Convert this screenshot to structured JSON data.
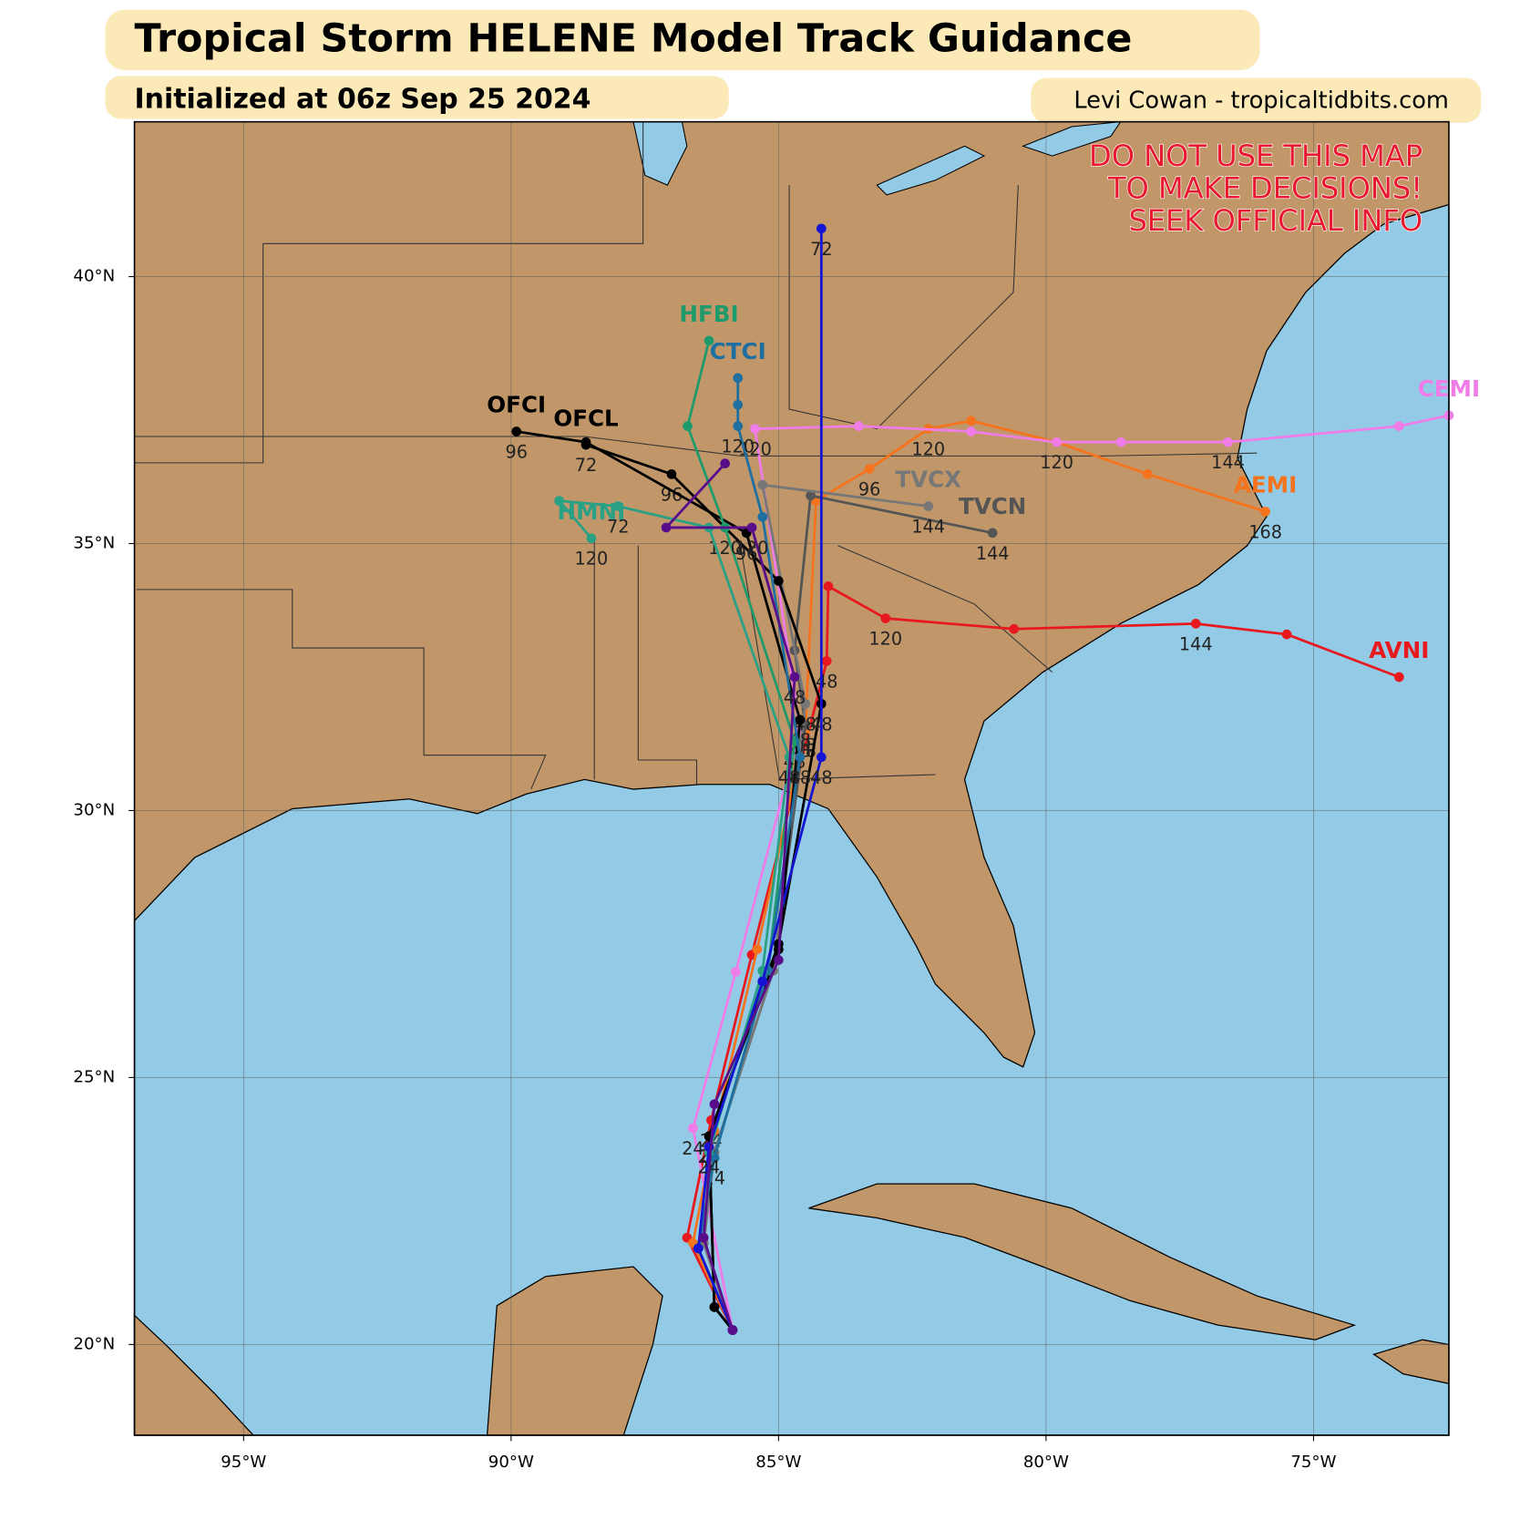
{
  "chart_data": {
    "type": "track",
    "title": "Tropical Storm HELENE Model Track Guidance",
    "subtitle": "Initialized at 06z Sep 25 2024",
    "credit": "Levi Cowan - tropicaltidbits.com",
    "annotations": [
      "DO NOT USE THIS MAP",
      "TO MAKE DECISIONS!",
      "SEEK OFFICIAL INFO"
    ],
    "xlim": [
      -97.04,
      -72.47
    ],
    "ylim": [
      18.3,
      42.9
    ],
    "grid": true,
    "xticks": [
      {
        "value": -95,
        "label": "95°W"
      },
      {
        "value": -90,
        "label": "90°W"
      },
      {
        "value": -85,
        "label": "85°W"
      },
      {
        "value": -80,
        "label": "80°W"
      },
      {
        "value": -75,
        "label": "75°W"
      }
    ],
    "yticks": [
      {
        "value": 20,
        "label": "20°N"
      },
      {
        "value": 25,
        "label": "25°N"
      },
      {
        "value": 30,
        "label": "30°N"
      },
      {
        "value": 35,
        "label": "35°N"
      },
      {
        "value": 40,
        "label": "40°N"
      }
    ],
    "series": [
      {
        "name": "AVNI",
        "color": "#e8191e",
        "x": [
          -85.86,
          -86.71,
          -86.26,
          -85.5,
          -84.1,
          -84.07,
          -83.0,
          -80.6,
          -77.2,
          -75.5,
          -73.4
        ],
        "values": [
          20.27,
          22.0,
          24.2,
          27.3,
          32.8,
          34.2,
          33.6,
          33.4,
          33.5,
          33.3,
          32.5
        ],
        "point_labels": [
          null,
          null,
          "24",
          null,
          "48",
          null,
          "120",
          null,
          "144",
          null,
          null
        ]
      },
      {
        "name": "AEMI",
        "color": "#f5731c",
        "x": [
          -85.86,
          -86.6,
          -86.2,
          -85.4,
          -84.5,
          -84.3,
          -83.3,
          -82.2,
          -81.4,
          -79.8,
          -78.1,
          -75.9
        ],
        "values": [
          20.27,
          21.9,
          24.0,
          27.4,
          31.5,
          35.8,
          36.4,
          37.15,
          37.3,
          36.9,
          36.3,
          35.6
        ],
        "point_labels": [
          null,
          null,
          null,
          null,
          "48",
          null,
          "96",
          "120",
          null,
          "120",
          null,
          "168"
        ]
      },
      {
        "name": "CEMI",
        "color": "#f07ce8",
        "x": [
          -85.86,
          -86.6,
          -85.8,
          -84.6,
          -85.44,
          -83.5,
          -81.4,
          -79.8,
          -78.6,
          -76.6,
          -73.4,
          -72.47
        ],
        "values": [
          20.27,
          24.05,
          26.98,
          31.5,
          37.15,
          37.2,
          37.1,
          36.9,
          36.9,
          36.9,
          37.2,
          37.4
        ],
        "point_labels": [
          null,
          "24",
          null,
          "48",
          "120",
          null,
          null,
          null,
          null,
          "144",
          null,
          null
        ]
      },
      {
        "name": "TVCN",
        "color": "#555555",
        "x": [
          -85.86,
          -86.4,
          -86.2,
          -85.1,
          -84.5,
          -84.7,
          -84.4,
          -81.0
        ],
        "values": [
          20.27,
          21.9,
          23.6,
          27.0,
          31.6,
          33.0,
          35.9,
          35.2
        ],
        "point_labels": [
          null,
          null,
          null,
          null,
          "48",
          null,
          null,
          "144"
        ]
      },
      {
        "name": "TVCX",
        "color": "#777777",
        "x": [
          -85.86,
          -86.4,
          -86.2,
          -85.1,
          -84.5,
          -85.3,
          -82.2
        ],
        "values": [
          20.27,
          21.9,
          23.6,
          27.0,
          32.0,
          36.1,
          35.7
        ],
        "point_labels": [
          null,
          null,
          null,
          null,
          "48",
          null,
          "144"
        ]
      },
      {
        "name": "OFCL",
        "color": "#000000",
        "x": [
          -85.86,
          -86.2,
          -86.3,
          -85.0,
          -84.2,
          -85.0,
          -87.0,
          -88.6
        ],
        "values": [
          20.27,
          20.7,
          23.9,
          27.5,
          32.0,
          34.3,
          36.3,
          36.85
        ],
        "point_labels": [
          null,
          null,
          "24",
          null,
          "48",
          null,
          "96",
          "72"
        ]
      },
      {
        "name": "OFCI",
        "color": "#000000",
        "x": [
          -85.86,
          -86.2,
          -86.3,
          -85.0,
          -84.6,
          -85.6,
          -88.6,
          -89.9
        ],
        "values": [
          20.27,
          20.7,
          23.9,
          27.4,
          31.7,
          35.2,
          36.9,
          37.1
        ],
        "point_labels": [
          null,
          null,
          "24",
          null,
          "48",
          "96",
          null,
          "96"
        ]
      },
      {
        "name": "HFBI",
        "color": "#1f9a6a",
        "x": [
          -85.86,
          -86.5,
          -86.2,
          -85.2,
          -84.7,
          -86.0,
          -86.7,
          -86.3
        ],
        "values": [
          20.27,
          21.8,
          23.5,
          27.0,
          31.3,
          35.3,
          37.2,
          38.8
        ],
        "point_labels": [
          null,
          null,
          "24",
          null,
          "48",
          "120",
          null,
          null
        ]
      },
      {
        "name": "CTCI",
        "color": "#1f6fa0",
        "x": [
          -85.86,
          -86.5,
          -86.2,
          -85.2,
          -84.6,
          -85.3,
          -85.76,
          -85.76,
          -85.76
        ],
        "values": [
          20.27,
          21.8,
          23.5,
          27.0,
          31.0,
          35.5,
          37.2,
          37.6,
          38.1
        ],
        "point_labels": [
          null,
          null,
          null,
          null,
          "48",
          null,
          "120",
          null,
          null
        ]
      },
      {
        "name": "HMNI",
        "color": "#2aa084",
        "x": [
          -85.86,
          -86.5,
          -86.3,
          -85.3,
          -84.8,
          -86.3,
          -88.0,
          -89.1,
          -88.5
        ],
        "values": [
          20.27,
          21.8,
          23.6,
          27.0,
          31.0,
          35.3,
          35.7,
          35.8,
          35.1
        ],
        "point_labels": [
          null,
          null,
          null,
          null,
          "48",
          null,
          "72",
          null,
          "120"
        ]
      },
      {
        "color": "#1414d2",
        "x": [
          -85.86,
          -86.5,
          -86.3,
          -85.3,
          -84.2,
          -84.2
        ],
        "values": [
          20.27,
          21.8,
          23.7,
          26.8,
          31.0,
          40.9
        ],
        "point_labels": [
          null,
          null,
          "24",
          null,
          "48",
          "72"
        ]
      },
      {
        "color": "#5a0d8a",
        "x": [
          -85.86,
          -86.4,
          -86.2,
          -85.0,
          -84.7,
          -85.5,
          -87.1,
          -86.0
        ],
        "values": [
          20.27,
          22.0,
          24.5,
          27.2,
          32.5,
          35.3,
          35.3,
          36.5
        ],
        "point_labels": [
          null,
          null,
          null,
          null,
          "48",
          "120",
          null,
          null
        ]
      }
    ]
  }
}
